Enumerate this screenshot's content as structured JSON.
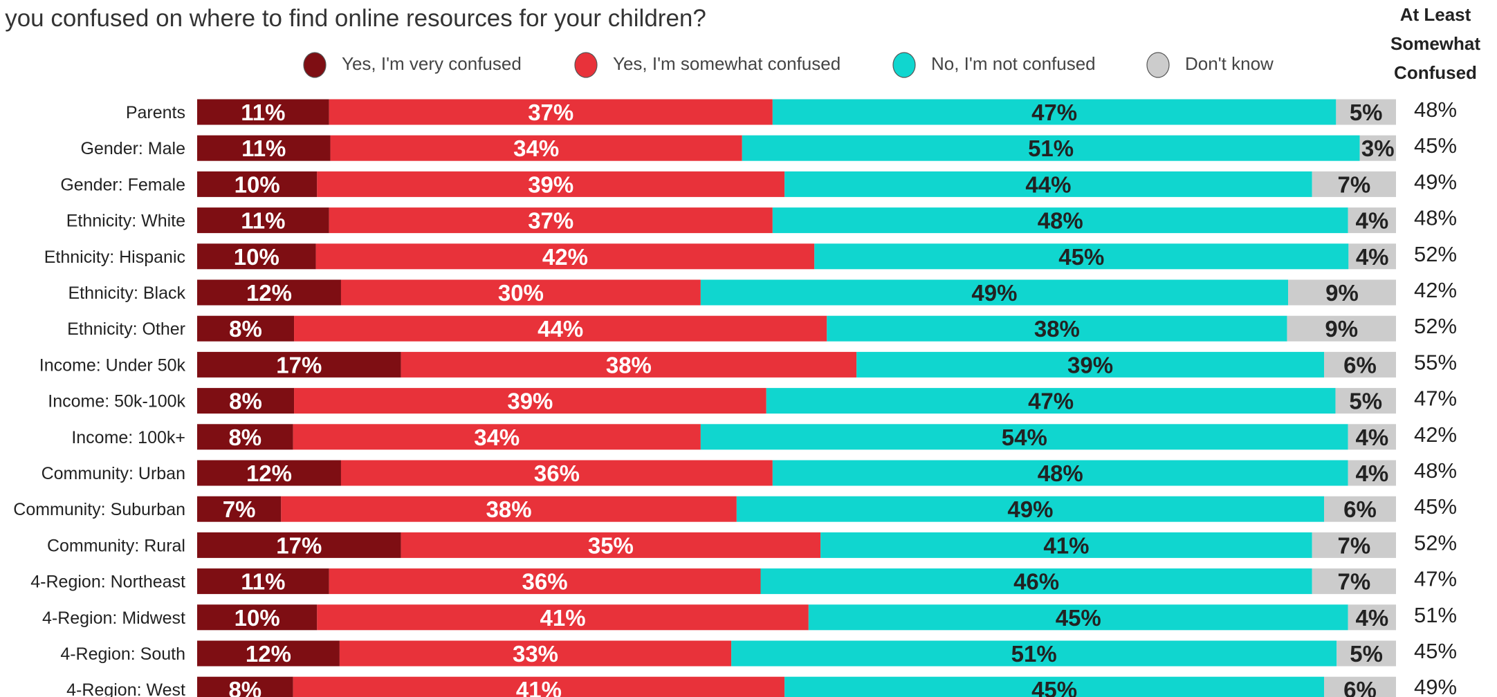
{
  "chart_data": {
    "type": "bar",
    "orientation": "horizontal",
    "stacked": true,
    "title": "e you confused on where to find online resources for your children?",
    "summary_header": [
      "At Least",
      "Somewhat",
      "Confused"
    ],
    "categories": [
      "Parents",
      "Gender: Male",
      "Gender: Female",
      "Ethnicity: White",
      "Ethnicity: Hispanic",
      "Ethnicity: Black",
      "Ethnicity: Other",
      "Income: Under 50k",
      "Income: 50k-100k",
      "Income: 100k+",
      "Community: Urban",
      "Community: Suburban",
      "Community: Rural",
      "4-Region: Northeast",
      "4-Region: Midwest",
      "4-Region: South",
      "4-Region: West"
    ],
    "series": [
      {
        "name": "Yes, I'm very confused",
        "color": "#7e0e13",
        "label_color": "#ffffff",
        "values": [
          11,
          11,
          10,
          11,
          10,
          12,
          8,
          17,
          8,
          8,
          12,
          7,
          17,
          11,
          10,
          12,
          8
        ],
        "labels": [
          "11%",
          "11%",
          "10%",
          "11%",
          "10%",
          "12%",
          "8%",
          "17%",
          "8%",
          "8%",
          "12%",
          "7%",
          "17%",
          "11%",
          "10%",
          "12%",
          "8%"
        ]
      },
      {
        "name": "Yes, I'm somewhat confused",
        "color": "#e8323a",
        "label_color": "#ffffff",
        "values": [
          37,
          34,
          39,
          37,
          42,
          30,
          44,
          38,
          39,
          34,
          36,
          38,
          35,
          36,
          41,
          33,
          41
        ],
        "labels": [
          "37%",
          "34%",
          "39%",
          "37%",
          "42%",
          "30%",
          "44%",
          "38%",
          "39%",
          "34%",
          "36%",
          "38%",
          "35%",
          "36%",
          "41%",
          "33%",
          "41%"
        ]
      },
      {
        "name": "No, I'm not confused",
        "color": "#10d6cf",
        "label_color": "#222222",
        "values": [
          47,
          51,
          44,
          48,
          45,
          49,
          38,
          39,
          47,
          54,
          48,
          49,
          41,
          46,
          45,
          51,
          45
        ],
        "labels": [
          "47%",
          "51%",
          "44%",
          "48%",
          "45%",
          "49%",
          "38%",
          "39%",
          "47%",
          "54%",
          "48%",
          "49%",
          "41%",
          "46%",
          "45%",
          "51%",
          "45%"
        ]
      },
      {
        "name": "Don't know",
        "color": "#cccccc",
        "label_color": "#222222",
        "values": [
          5,
          3,
          7,
          4,
          4,
          9,
          9,
          6,
          5,
          4,
          4,
          6,
          7,
          7,
          4,
          5,
          6
        ],
        "labels": [
          "5%",
          "3%",
          "7%",
          "4%",
          "4%",
          "9%",
          "9%",
          "6%",
          "5%",
          "4%",
          "4%",
          "6%",
          "7%",
          "7%",
          "4%",
          "5%",
          "6%"
        ]
      }
    ],
    "summary": [
      "48%",
      "45%",
      "49%",
      "48%",
      "52%",
      "42%",
      "52%",
      "55%",
      "47%",
      "42%",
      "48%",
      "45%",
      "52%",
      "47%",
      "51%",
      "45%",
      "49%"
    ],
    "legend_placement": "top",
    "grid": false
  }
}
